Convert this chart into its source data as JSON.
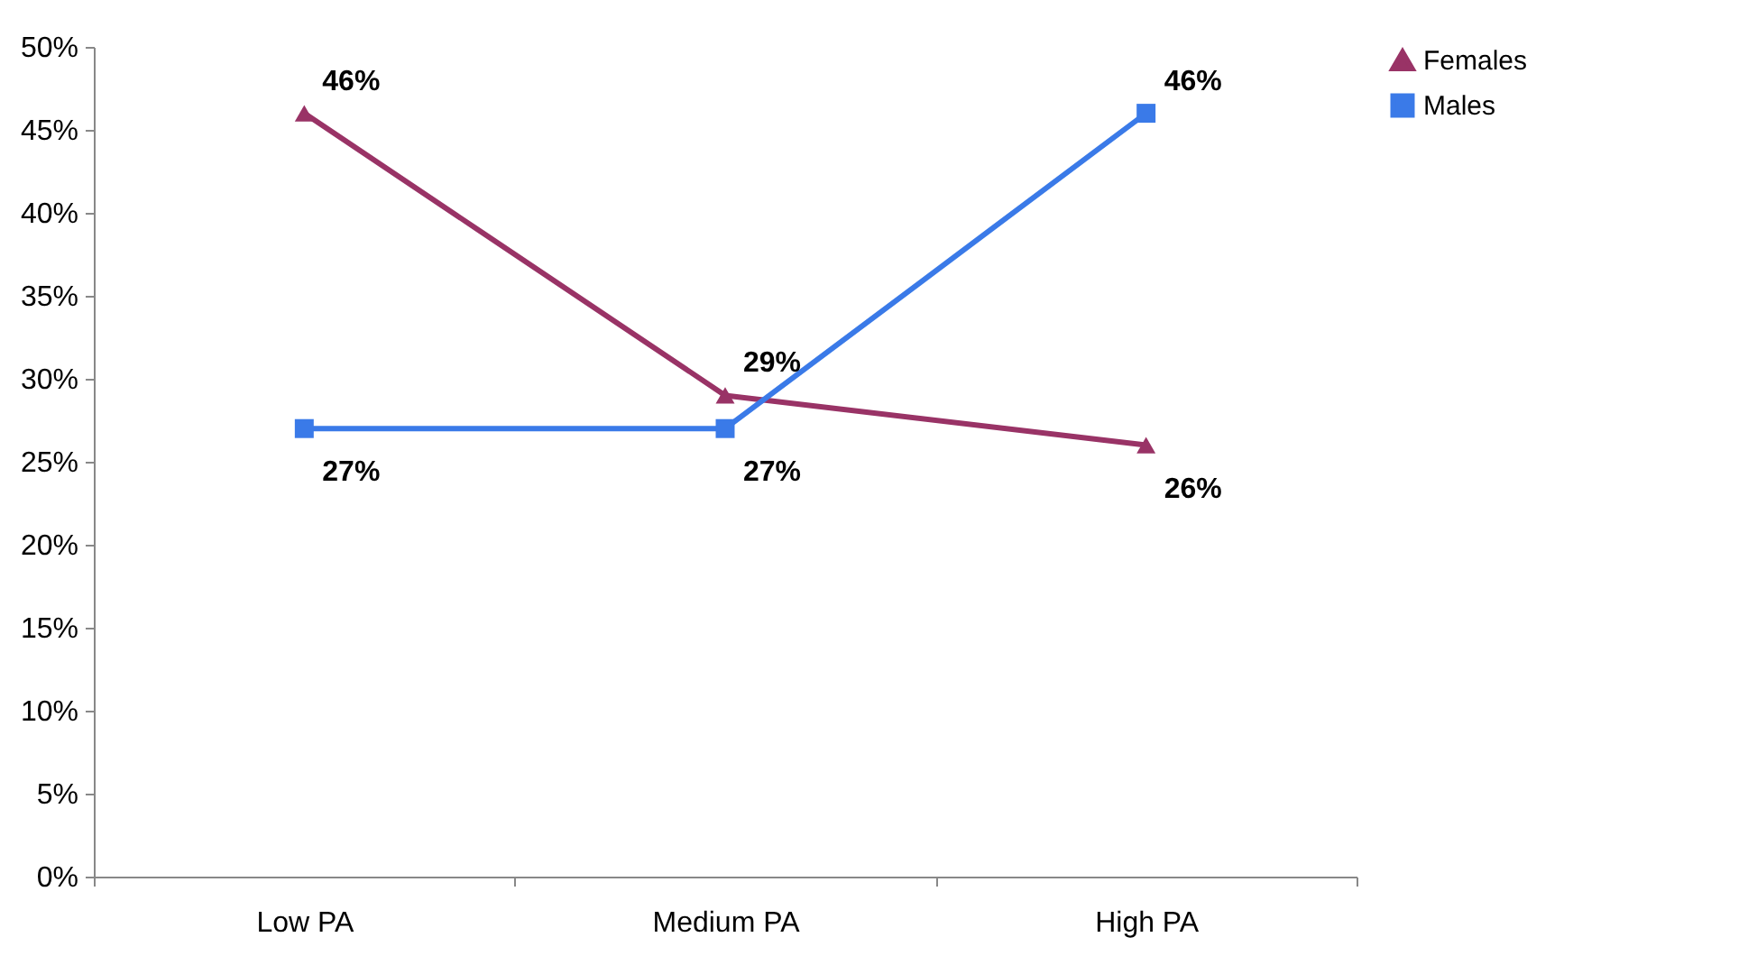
{
  "chart_data": {
    "type": "line",
    "categories": [
      "Low PA",
      "Medium PA",
      "High PA"
    ],
    "series": [
      {
        "name": "Females",
        "color": "#993366",
        "marker": "triangle",
        "values": [
          46,
          29,
          26
        ],
        "value_labels": [
          "46%",
          "29%",
          "26%"
        ]
      },
      {
        "name": "Males",
        "color": "#3a7ae8",
        "marker": "square",
        "values": [
          27,
          27,
          46
        ],
        "value_labels": [
          "27%",
          "27%",
          "46%"
        ]
      }
    ],
    "ylim": [
      0,
      50
    ],
    "yticks": [
      {
        "value": 0,
        "label": "0%"
      },
      {
        "value": 5,
        "label": "5%"
      },
      {
        "value": 10,
        "label": "10%"
      },
      {
        "value": 15,
        "label": "15%"
      },
      {
        "value": 20,
        "label": "20%"
      },
      {
        "value": 25,
        "label": "25%"
      },
      {
        "value": 30,
        "label": "30%"
      },
      {
        "value": 35,
        "label": "35%"
      },
      {
        "value": 40,
        "label": "40%"
      },
      {
        "value": 45,
        "label": "45%"
      },
      {
        "value": 50,
        "label": "50%"
      }
    ],
    "grid": false,
    "legend": "right",
    "line_style": "solid"
  }
}
